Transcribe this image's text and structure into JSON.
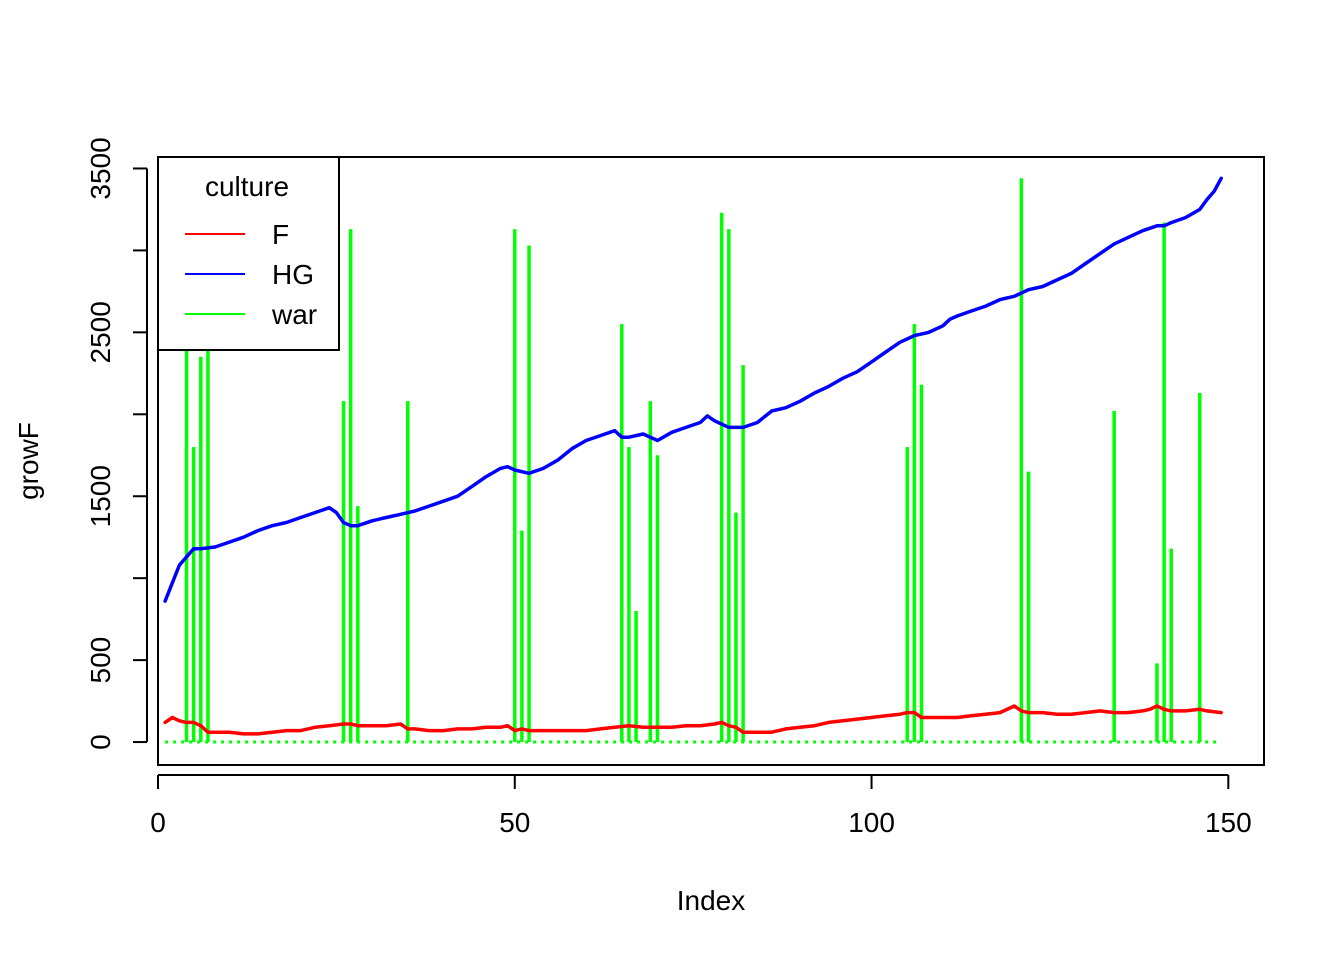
{
  "chart_data": {
    "type": "line",
    "xlabel": "Index",
    "ylabel": "growF",
    "xlim": [
      0,
      155
    ],
    "ylim": [
      -140,
      3570
    ],
    "x_ticks": [
      0,
      50,
      100,
      150
    ],
    "y_ticks": [
      0,
      500,
      1500,
      2500,
      3500
    ],
    "x_tick_labels": [
      "0",
      "50",
      "100",
      "150"
    ],
    "y_tick_labels": [
      "0",
      "500",
      "1500",
      "2500",
      "3500"
    ],
    "grid": false,
    "legend": {
      "title": "culture",
      "position": "top-left",
      "entries": [
        {
          "label": "F",
          "color": "#ff0000"
        },
        {
          "label": "HG",
          "color": "#0000ff"
        },
        {
          "label": "war",
          "color": "#00ff00"
        }
      ]
    },
    "series": [
      {
        "name": "F",
        "style": "line",
        "color": "#ff0000",
        "x": [
          1,
          2,
          3,
          4,
          5,
          6,
          7,
          8,
          10,
          12,
          14,
          16,
          18,
          20,
          22,
          24,
          26,
          27,
          28,
          30,
          32,
          34,
          35,
          36,
          38,
          40,
          42,
          44,
          46,
          48,
          49,
          50,
          51,
          52,
          54,
          56,
          58,
          60,
          62,
          64,
          66,
          68,
          70,
          72,
          74,
          76,
          78,
          79,
          80,
          81,
          82,
          84,
          86,
          87,
          88,
          90,
          92,
          94,
          96,
          98,
          100,
          102,
          104,
          105,
          106,
          107,
          110,
          112,
          114,
          116,
          118,
          120,
          121,
          122,
          124,
          126,
          128,
          130,
          132,
          134,
          136,
          138,
          139,
          140,
          141,
          142,
          144,
          146,
          147,
          149
        ],
        "values": [
          120,
          150,
          130,
          120,
          120,
          100,
          60,
          60,
          60,
          50,
          50,
          60,
          70,
          70,
          90,
          100,
          110,
          110,
          100,
          100,
          100,
          110,
          80,
          80,
          70,
          70,
          80,
          80,
          90,
          90,
          100,
          70,
          80,
          70,
          70,
          70,
          70,
          70,
          80,
          90,
          100,
          90,
          90,
          90,
          100,
          100,
          110,
          120,
          100,
          90,
          60,
          60,
          60,
          70,
          80,
          90,
          100,
          120,
          130,
          140,
          150,
          160,
          170,
          180,
          180,
          150,
          150,
          150,
          160,
          170,
          180,
          220,
          190,
          180,
          180,
          170,
          170,
          180,
          190,
          180,
          180,
          190,
          200,
          220,
          200,
          190,
          190,
          200,
          190,
          180
        ]
      },
      {
        "name": "HG",
        "style": "line",
        "color": "#0000ff",
        "x": [
          1,
          3,
          5,
          6,
          8,
          10,
          12,
          14,
          16,
          18,
          20,
          22,
          24,
          25,
          26,
          27,
          28,
          30,
          32,
          34,
          36,
          38,
          40,
          42,
          44,
          46,
          48,
          49,
          50,
          52,
          54,
          56,
          58,
          60,
          62,
          64,
          65,
          66,
          68,
          70,
          72,
          74,
          76,
          77,
          78,
          80,
          82,
          84,
          86,
          88,
          90,
          92,
          94,
          96,
          98,
          100,
          102,
          104,
          106,
          108,
          110,
          111,
          112,
          114,
          116,
          118,
          120,
          122,
          124,
          126,
          128,
          130,
          132,
          134,
          136,
          138,
          140,
          141,
          142,
          144,
          146,
          147,
          148,
          149
        ],
        "values": [
          860,
          1080,
          1180,
          1180,
          1190,
          1220,
          1250,
          1290,
          1320,
          1340,
          1370,
          1400,
          1430,
          1400,
          1340,
          1320,
          1320,
          1350,
          1370,
          1390,
          1410,
          1440,
          1470,
          1500,
          1560,
          1620,
          1670,
          1680,
          1660,
          1640,
          1670,
          1720,
          1790,
          1840,
          1870,
          1900,
          1860,
          1860,
          1880,
          1840,
          1890,
          1920,
          1950,
          1990,
          1960,
          1920,
          1920,
          1950,
          2020,
          2040,
          2080,
          2130,
          2170,
          2220,
          2260,
          2320,
          2380,
          2440,
          2480,
          2500,
          2540,
          2580,
          2600,
          2630,
          2660,
          2700,
          2720,
          2760,
          2780,
          2820,
          2860,
          2920,
          2980,
          3040,
          3080,
          3120,
          3150,
          3150,
          3170,
          3200,
          3250,
          3310,
          3360,
          3440
        ]
      },
      {
        "name": "war",
        "style": "spikes",
        "color": "#00ff00",
        "x": [
          4,
          5,
          6,
          7,
          26,
          27,
          28,
          35,
          50,
          51,
          52,
          65,
          66,
          67,
          69,
          70,
          79,
          80,
          81,
          82,
          105,
          106,
          107,
          121,
          122,
          134,
          140,
          141,
          142,
          146
        ],
        "values": [
          2400,
          1800,
          2350,
          2400,
          2080,
          3130,
          1440,
          2080,
          3130,
          1290,
          3030,
          2550,
          1800,
          800,
          2080,
          1750,
          3230,
          3130,
          1400,
          2300,
          1800,
          2550,
          2180,
          3440,
          1650,
          2020,
          480,
          3170,
          1180,
          2130
        ],
        "baseline_x": [
          1,
          149
        ],
        "baseline_value": 0
      }
    ]
  }
}
